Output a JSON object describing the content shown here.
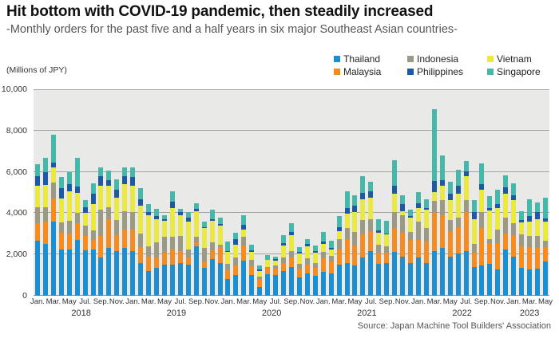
{
  "header": {
    "title": "Hit bottom with COVID-19 pandemic, then steadily increased",
    "subtitle": "-Monthly orders for the past five and a half years in six major Southeast Asian countries-"
  },
  "y_axis": {
    "unit_label": "(Millions of JPY)",
    "tick_labels": [
      "0",
      "2,000",
      "4,000",
      "6,000",
      "8,000",
      "10,000"
    ]
  },
  "legend": [
    {
      "label": "Thailand",
      "color": "#1b8fd0"
    },
    {
      "label": "Malaysia",
      "color": "#f68b1f"
    },
    {
      "label": "Indonesia",
      "color": "#9d9a84"
    },
    {
      "label": "Philippines",
      "color": "#1d59a5"
    },
    {
      "label": "Vietnam",
      "color": "#ebe93e"
    },
    {
      "label": "Singapore",
      "color": "#44b9ab"
    }
  ],
  "source": "Source: Japan Machine Tool Builders' Association",
  "chart_data": {
    "type": "bar",
    "stacked": true,
    "title": "Hit bottom with COVID-19 pandemic, then steadily increased",
    "subtitle": "-Monthly orders for the past five and a half years in six major Southeast Asian countries-",
    "ylabel": "(Millions of JPY)",
    "ylim": [
      0,
      10000
    ],
    "y_ticks": [
      0,
      2000,
      4000,
      6000,
      8000,
      10000
    ],
    "grid": true,
    "legend_position": "top-right",
    "x_axis": {
      "tick_labels_per_year": [
        "Jan.",
        "Mar.",
        "May",
        "Jul.",
        "Sep.",
        "Nov."
      ],
      "years": [
        {
          "label": "2018",
          "start": 0,
          "count": 12
        },
        {
          "label": "2019",
          "start": 12,
          "count": 12
        },
        {
          "label": "2020",
          "start": 24,
          "count": 12
        },
        {
          "label": "2021",
          "start": 36,
          "count": 12
        },
        {
          "label": "2022",
          "start": 48,
          "count": 12
        },
        {
          "label": "2023",
          "start": 60,
          "count": 5
        }
      ],
      "total_months": 65,
      "range_note": "Jan 2018 - May 2023"
    },
    "stack_order_bottom_to_top": [
      "Thailand",
      "Malaysia",
      "Indonesia",
      "Vietnam",
      "Philippines",
      "Singapore"
    ],
    "series": [
      {
        "name": "Thailand",
        "color": "#1b8fd0",
        "values": [
          2650,
          2500,
          3600,
          2250,
          2250,
          2700,
          2200,
          2250,
          1850,
          2300,
          2150,
          2300,
          2170,
          1590,
          1200,
          1350,
          1500,
          1520,
          1590,
          1520,
          2400,
          1340,
          1795,
          1590,
          800,
          1005,
          1715,
          1000,
          430,
          1040,
          1000,
          1200,
          1400,
          900,
          1100,
          950,
          1150,
          1100,
          1520,
          1590,
          1460,
          1845,
          2170,
          1540,
          1570,
          2105,
          1910,
          1590,
          1845,
          1590,
          2150,
          2300,
          1910,
          2040,
          2170,
          1395,
          1460,
          1550,
          1265,
          2230,
          1910,
          1350,
          1265,
          1330,
          1650
        ]
      },
      {
        "name": "Malaysia",
        "color": "#f68b1f",
        "values": [
          850,
          1100,
          1100,
          800,
          750,
          800,
          700,
          450,
          1030,
          1420,
          800,
          900,
          1030,
          775,
          700,
          500,
          600,
          710,
          580,
          320,
          200,
          320,
          390,
          775,
          430,
          450,
          710,
          430,
          380,
          300,
          300,
          400,
          450,
          400,
          400,
          400,
          650,
          560,
          710,
          1160,
          970,
          1160,
          970,
          560,
          500,
          1160,
          1160,
          1100,
          840,
          1030,
          1850,
          1610,
          1225,
          1290,
          1870,
          710,
          1805,
          1000,
          1290,
          775,
          1030,
          1030,
          1100,
          970,
          710
        ]
      },
      {
        "name": "Indonesia",
        "color": "#9d9a84",
        "values": [
          780,
          700,
          800,
          520,
          620,
          500,
          500,
          450,
          1290,
          580,
          700,
          900,
          840,
          645,
          500,
          750,
          775,
          645,
          710,
          390,
          250,
          645,
          390,
          120,
          320,
          390,
          450,
          320,
          100,
          60,
          150,
          250,
          300,
          250,
          300,
          250,
          320,
          260,
          515,
          515,
          645,
          645,
          580,
          390,
          320,
          775,
          840,
          390,
          900,
          645,
          580,
          710,
          515,
          450,
          580,
          390,
          775,
          200,
          645,
          775,
          580,
          580,
          515,
          580,
          320
        ]
      },
      {
        "name": "Vietnam",
        "color": "#ebe93e",
        "values": [
          1050,
          1050,
          700,
          1150,
          1450,
          1000,
          600,
          1300,
          1160,
          1030,
          1100,
          1300,
          1290,
          1355,
          1500,
          1100,
          775,
          1355,
          1030,
          1355,
          1250,
          970,
          1050,
          900,
          560,
          645,
          320,
          390,
          300,
          320,
          250,
          600,
          800,
          500,
          600,
          500,
          390,
          320,
          390,
          710,
          970,
          1030,
          1030,
          570,
          570,
          900,
          195,
          710,
          645,
          900,
          450,
          710,
          970,
          1160,
          1160,
          1225,
          1100,
          1400,
          1030,
          1160,
          1100,
          600,
          710,
          840,
          900
        ]
      },
      {
        "name": "Philippines",
        "color": "#1d59a5",
        "values": [
          450,
          650,
          250,
          480,
          350,
          300,
          300,
          500,
          450,
          270,
          400,
          380,
          420,
          320,
          150,
          150,
          65,
          320,
          130,
          195,
          120,
          60,
          100,
          75,
          60,
          260,
          260,
          50,
          50,
          30,
          60,
          100,
          150,
          60,
          100,
          75,
          100,
          60,
          195,
          260,
          320,
          320,
          320,
          100,
          50,
          390,
          320,
          60,
          260,
          100,
          515,
          260,
          320,
          390,
          260,
          320,
          260,
          100,
          195,
          320,
          260,
          120,
          260,
          320,
          150
        ]
      },
      {
        "name": "Singapore",
        "color": "#44b9ab",
        "values": [
          600,
          680,
          1350,
          550,
          550,
          1400,
          350,
          500,
          450,
          450,
          500,
          450,
          450,
          515,
          400,
          350,
          195,
          515,
          190,
          260,
          260,
          260,
          450,
          320,
          450,
          320,
          450,
          300,
          200,
          225,
          150,
          390,
          420,
          250,
          250,
          250,
          500,
          385,
          515,
          840,
          515,
          775,
          450,
          560,
          640,
          1225,
          450,
          320,
          515,
          415,
          3500,
          1190,
          580,
          775,
          475,
          580,
          1030,
          560,
          710,
          580,
          580,
          420,
          810,
          490,
          1020
        ]
      }
    ]
  }
}
